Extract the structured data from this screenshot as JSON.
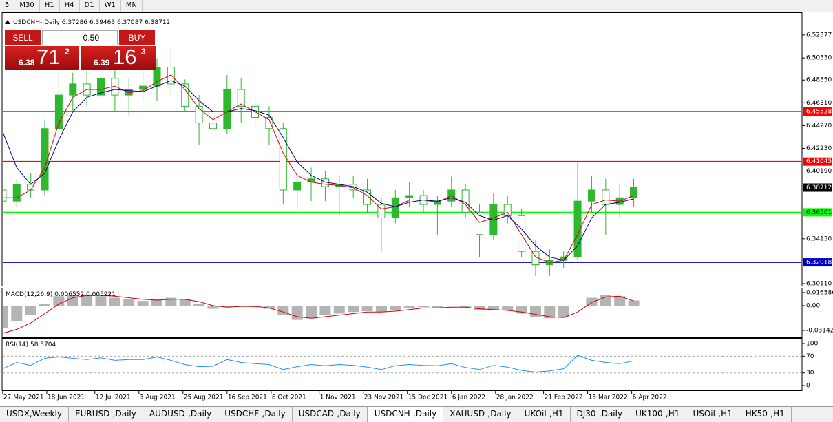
{
  "toolbar": {
    "timeframes": [
      "5",
      "M30",
      "H1",
      "H4",
      "D1",
      "W1",
      "MN"
    ]
  },
  "trade_panel": {
    "sell": "SELL",
    "buy": "BUY",
    "lot": "0.50",
    "sell_price": {
      "head": "6.38",
      "big": "71",
      "sup": "2"
    },
    "buy_price": {
      "head": "6.39",
      "big": "16",
      "sup": "3"
    }
  },
  "chart_data": [
    {
      "type": "candlestick",
      "title": "USDCNH-,Daily",
      "ohlc": [
        6.37286,
        6.39463,
        6.37087,
        6.38712
      ],
      "color": "#2db82d",
      "x": [
        "2021-05-27",
        "2021-06-03",
        "2021-06-10",
        "2021-06-17",
        "2021-06-24",
        "2021-07-01",
        "2021-07-08",
        "2021-07-15",
        "2021-07-22",
        "2021-07-29",
        "2021-08-05",
        "2021-08-12",
        "2021-08-19",
        "2021-08-26",
        "2021-09-02",
        "2021-09-09",
        "2021-09-16",
        "2021-09-23",
        "2021-09-30",
        "2021-10-07",
        "2021-10-14",
        "2021-10-21",
        "2021-10-28",
        "2021-11-04",
        "2021-11-11",
        "2021-11-18",
        "2021-11-25",
        "2021-12-02",
        "2021-12-09",
        "2021-12-16",
        "2021-12-23",
        "2021-12-30",
        "2022-01-06",
        "2022-01-13",
        "2022-01-20",
        "2022-01-27",
        "2022-02-03",
        "2022-02-10",
        "2022-02-17",
        "2022-02-24",
        "2022-03-03",
        "2022-03-10",
        "2022-03-17",
        "2022-03-24",
        "2022-03-31",
        "2022-04-07"
      ],
      "open": [
        6.385,
        6.375,
        6.39,
        6.385,
        6.44,
        6.47,
        6.48,
        6.47,
        6.485,
        6.47,
        6.475,
        6.478,
        6.495,
        6.48,
        6.46,
        6.445,
        6.44,
        6.475,
        6.46,
        6.45,
        6.44,
        6.385,
        6.392,
        6.395,
        6.388,
        6.39,
        6.385,
        6.372,
        6.36,
        6.378,
        6.38,
        6.372,
        6.375,
        6.385,
        6.365,
        6.345,
        6.372,
        6.362,
        6.33,
        6.318,
        6.322,
        6.325,
        6.375,
        6.385,
        6.372,
        6.378
      ],
      "high": [
        6.395,
        6.395,
        6.4,
        6.448,
        6.495,
        6.49,
        6.492,
        6.49,
        6.495,
        6.485,
        6.5,
        6.503,
        6.512,
        6.484,
        6.47,
        6.46,
        6.488,
        6.485,
        6.47,
        6.46,
        6.445,
        6.398,
        6.405,
        6.402,
        6.398,
        6.398,
        6.395,
        6.378,
        6.385,
        6.392,
        6.385,
        6.38,
        6.397,
        6.39,
        6.372,
        6.382,
        6.38,
        6.368,
        6.34,
        6.332,
        6.33,
        6.41,
        6.398,
        6.395,
        6.39,
        6.395
      ],
      "low": [
        6.36,
        6.37,
        6.378,
        6.38,
        6.43,
        6.455,
        6.46,
        6.455,
        6.455,
        6.452,
        6.465,
        6.465,
        6.47,
        6.455,
        6.425,
        6.42,
        6.435,
        6.445,
        6.44,
        6.425,
        6.372,
        6.368,
        6.375,
        6.375,
        6.362,
        6.378,
        6.365,
        6.33,
        6.355,
        6.37,
        6.365,
        6.345,
        6.37,
        6.36,
        6.325,
        6.34,
        6.355,
        6.325,
        6.308,
        6.308,
        6.315,
        6.322,
        6.365,
        6.345,
        6.36,
        6.37
      ],
      "close": [
        6.375,
        6.39,
        6.385,
        6.44,
        6.47,
        6.48,
        6.47,
        6.485,
        6.47,
        6.475,
        6.478,
        6.495,
        6.48,
        6.46,
        6.445,
        6.44,
        6.475,
        6.46,
        6.45,
        6.44,
        6.385,
        6.392,
        6.395,
        6.388,
        6.39,
        6.385,
        6.372,
        6.36,
        6.378,
        6.38,
        6.372,
        6.375,
        6.385,
        6.365,
        6.345,
        6.372,
        6.362,
        6.33,
        6.318,
        6.322,
        6.325,
        6.375,
        6.385,
        6.372,
        6.378,
        6.38712
      ],
      "series": [
        {
          "color": "#e00000",
          "values": [
            6.378,
            6.378,
            6.385,
            6.405,
            6.445,
            6.468,
            6.475,
            6.475,
            6.478,
            6.472,
            6.474,
            6.482,
            6.488,
            6.475,
            6.458,
            6.448,
            6.455,
            6.462,
            6.455,
            6.448,
            6.418,
            6.398,
            6.392,
            6.39,
            6.389,
            6.387,
            6.38,
            6.368,
            6.37,
            6.376,
            6.376,
            6.374,
            6.38,
            6.372,
            6.356,
            6.36,
            6.365,
            6.345,
            6.325,
            6.32,
            6.322,
            6.345,
            6.372,
            6.376,
            6.375,
            6.38
          ]
        },
        {
          "color": "#000090",
          "values": [
            6.437,
            6.405,
            6.39,
            6.4,
            6.43,
            6.455,
            6.468,
            6.472,
            6.475,
            6.474,
            6.473,
            6.478,
            6.483,
            6.478,
            6.465,
            6.455,
            6.455,
            6.458,
            6.456,
            6.452,
            6.432,
            6.41,
            6.398,
            6.392,
            6.39,
            6.388,
            6.383,
            6.373,
            6.37,
            6.374,
            6.376,
            6.375,
            6.378,
            6.374,
            6.362,
            6.358,
            6.362,
            6.35,
            6.335,
            6.325,
            6.322,
            6.335,
            6.36,
            6.372,
            6.374,
            6.377
          ]
        }
      ],
      "levels": [
        {
          "value": 6.45528,
          "color": "#ff0000"
        },
        {
          "value": 6.41045,
          "color": "#ff0000"
        },
        {
          "value": 6.36501,
          "color": "#00ff00"
        },
        {
          "value": 6.32018,
          "color": "#0000c8"
        }
      ],
      "xlim": [
        "2021-05-26",
        "2022-06-30"
      ],
      "xticks": [
        {
          "value": "2021-05-27",
          "label": "27 May 2021"
        },
        {
          "value": "2021-06-18",
          "label": "18 Jun 2021"
        },
        {
          "value": "2021-07-12",
          "label": "12 Jul 2021"
        },
        {
          "value": "2021-08-03",
          "label": "3 Aug 2021"
        },
        {
          "value": "2021-08-25",
          "label": "25 Aug 2021"
        },
        {
          "value": "2021-09-16",
          "label": "16 Sep 2021"
        },
        {
          "value": "2021-10-08",
          "label": "8 Oct 2021"
        },
        {
          "value": "2021-11-01",
          "label": "1 Nov 2021"
        },
        {
          "value": "2021-11-23",
          "label": "23 Nov 2021"
        },
        {
          "value": "2021-12-15",
          "label": "15 Dec 2021"
        },
        {
          "value": "2022-01-06",
          "label": "6 Jan 2022"
        },
        {
          "value": "2022-01-28",
          "label": "28 Jan 2022"
        },
        {
          "value": "2022-02-21",
          "label": "21 Feb 2022"
        },
        {
          "value": "2022-03-15",
          "label": "15 Mar 2022"
        },
        {
          "value": "2022-04-06",
          "label": "6 Apr 2022"
        }
      ],
      "ylim": [
        6.29864,
        6.54345
      ],
      "yticks": [
        6.52377,
        {
          "value": 6.5033,
          "label": "6.50330"
        },
        {
          "value": 6.4835,
          "label": "6.48350"
        },
        {
          "value": 6.4631,
          "label": "6.46310"
        },
        {
          "value": 6.4427,
          "label": "6.44270"
        },
        {
          "value": 6.4223,
          "label": "6.42230"
        },
        {
          "value": 6.4019,
          "label": "6.40190"
        },
        {
          "value": 6.3413,
          "label": "6.34130"
        },
        {
          "value": 6.3011,
          "label": "6.30110"
        }
      ]
    },
    {
      "type": "macd",
      "title": "MACD(12,26,9)",
      "current": [
        0.006552,
        0.005921
      ],
      "hist_color": "#b4b4b4",
      "signal_color": "#d00000",
      "histogram": [
        -0.028,
        -0.02,
        -0.012,
        0.002,
        0.012,
        0.014,
        0.014,
        0.012,
        0.01,
        0.008,
        0.006,
        0.008,
        0.01,
        0.008,
        0.002,
        -0.004,
        -0.002,
        0.0,
        -0.002,
        -0.004,
        -0.012,
        -0.018,
        -0.016,
        -0.012,
        -0.01,
        -0.008,
        -0.007,
        -0.008,
        -0.006,
        -0.003,
        -0.002,
        -0.003,
        -0.001,
        -0.002,
        -0.006,
        -0.006,
        -0.006,
        -0.01,
        -0.014,
        -0.016,
        -0.014,
        0.0,
        0.01,
        0.014,
        0.012,
        0.006552
      ],
      "signal": [
        -0.035,
        -0.03,
        -0.022,
        -0.01,
        0.002,
        0.01,
        0.013,
        0.013,
        0.012,
        0.01,
        0.008,
        0.007,
        0.008,
        0.008,
        0.005,
        0.0,
        -0.002,
        -0.001,
        -0.001,
        -0.003,
        -0.008,
        -0.014,
        -0.016,
        -0.014,
        -0.012,
        -0.01,
        -0.008,
        -0.008,
        -0.007,
        -0.005,
        -0.003,
        -0.003,
        -0.002,
        -0.002,
        -0.004,
        -0.005,
        -0.006,
        -0.008,
        -0.011,
        -0.014,
        -0.015,
        -0.008,
        0.004,
        0.011,
        0.012,
        0.005921
      ],
      "ylim": [
        -0.04015,
        0.02182
      ],
      "yticks": [
        0.016586,
        {
          "value": 0,
          "label": "0.00"
        },
        -0.031421
      ]
    },
    {
      "type": "rsi",
      "title": "RSI(14)",
      "current": 58.5704,
      "color": "#1e90ff",
      "values": [
        40,
        55,
        48,
        65,
        68,
        65,
        62,
        66,
        60,
        62,
        62,
        68,
        60,
        50,
        45,
        46,
        62,
        55,
        52,
        50,
        38,
        45,
        50,
        47,
        50,
        48,
        44,
        38,
        47,
        50,
        48,
        47,
        52,
        43,
        38,
        48,
        44,
        36,
        32,
        35,
        40,
        72,
        60,
        55,
        52,
        58.5704
      ],
      "ylim": [
        -13.1,
        111.5
      ],
      "yticks": [
        100,
        70,
        30,
        0
      ]
    }
  ],
  "tabs": {
    "items": [
      "USDX,Weekly",
      "EURUSD-,Daily",
      "AUDUSD-,Daily",
      "USDCHF-,Daily",
      "USDCAD-,Daily",
      "USDCNH-,Daily",
      "XAUUSD-,Daily",
      "UKOil-,H1",
      "DJ30-,Daily",
      "UK100-,H1",
      "USOil-,H1",
      "HK50-,H1"
    ],
    "active": 5
  }
}
